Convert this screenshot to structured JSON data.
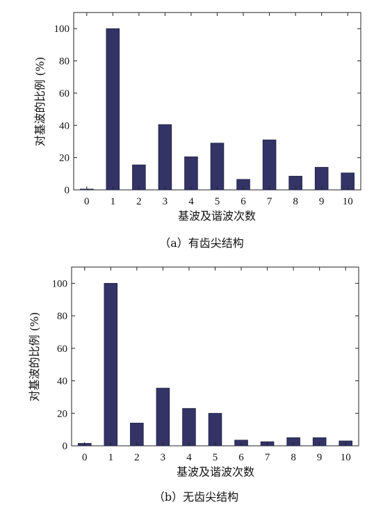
{
  "chart_data": [
    {
      "type": "bar",
      "title": "",
      "xlabel": "基波及谐波次数",
      "ylabel": "对基波的比例 (%)",
      "caption": "（a）有齿尖结构",
      "categories": [
        "0",
        "1",
        "2",
        "3",
        "4",
        "5",
        "6",
        "7",
        "8",
        "9",
        "10"
      ],
      "values": [
        0.5,
        100,
        15.5,
        40.5,
        20.5,
        29,
        6.5,
        31,
        8.5,
        14,
        10.5
      ],
      "ylim": [
        0,
        110
      ],
      "yticks": [
        0,
        20,
        40,
        60,
        80,
        100
      ],
      "grid": false,
      "bar_color": "#333366"
    },
    {
      "type": "bar",
      "title": "",
      "xlabel": "基波及谐波次数",
      "ylabel": "对基波的比例 (%)",
      "caption": "（b）无齿尖结构",
      "categories": [
        "0",
        "1",
        "2",
        "3",
        "4",
        "5",
        "6",
        "7",
        "8",
        "9",
        "10"
      ],
      "values": [
        1.5,
        100,
        14,
        35.5,
        23,
        20,
        3.5,
        2.5,
        5,
        5,
        3
      ],
      "ylim": [
        0,
        110
      ],
      "yticks": [
        0,
        20,
        40,
        60,
        80,
        100
      ],
      "grid": false,
      "bar_color": "#333366"
    }
  ]
}
